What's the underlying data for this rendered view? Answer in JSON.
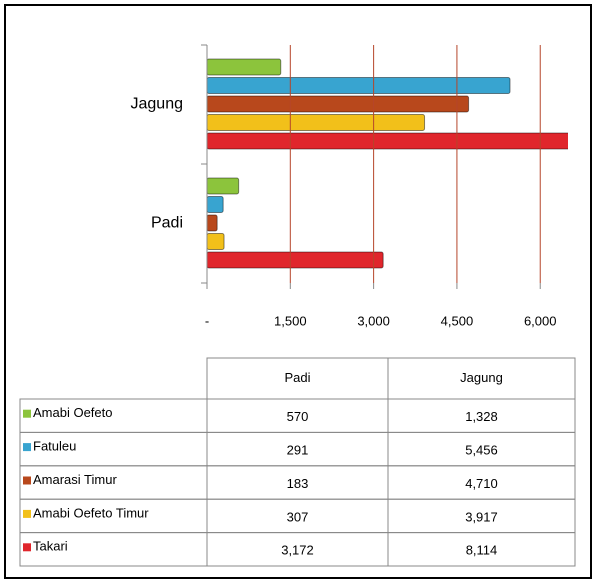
{
  "chart_data": {
    "type": "bar",
    "orientation": "horizontal",
    "categories": [
      "Padi",
      "Jagung"
    ],
    "series": [
      {
        "name": "Amabi Oefeto",
        "color": "#8cc43c",
        "values": [
          570,
          1328
        ],
        "value_labels": [
          "570",
          "1,328"
        ]
      },
      {
        "name": "Fatuleu",
        "color": "#38a4d0",
        "values": [
          291,
          5456
        ],
        "value_labels": [
          "291",
          "5,456"
        ]
      },
      {
        "name": "Amarasi Timur",
        "color": "#b8481c",
        "values": [
          183,
          4710
        ],
        "value_labels": [
          "183",
          "4,710"
        ]
      },
      {
        "name": "Amabi Oefeto Timur",
        "color": "#f2c01a",
        "values": [
          307,
          3917
        ],
        "value_labels": [
          "307",
          "3,917"
        ]
      },
      {
        "name": "Takari",
        "color": "#e0262c",
        "values": [
          3172,
          8114
        ],
        "value_labels": [
          "3,172",
          "8,114"
        ]
      }
    ],
    "xlim": [
      0,
      6500
    ],
    "xticks": [
      {
        "value": 0,
        "label": "-"
      },
      {
        "value": 1500,
        "label": "1,500"
      },
      {
        "value": 3000,
        "label": "3,000"
      },
      {
        "value": 4500,
        "label": "4,500"
      },
      {
        "value": 6000,
        "label": "6,000"
      }
    ],
    "grid": true,
    "grid_color": "#b5452a"
  }
}
